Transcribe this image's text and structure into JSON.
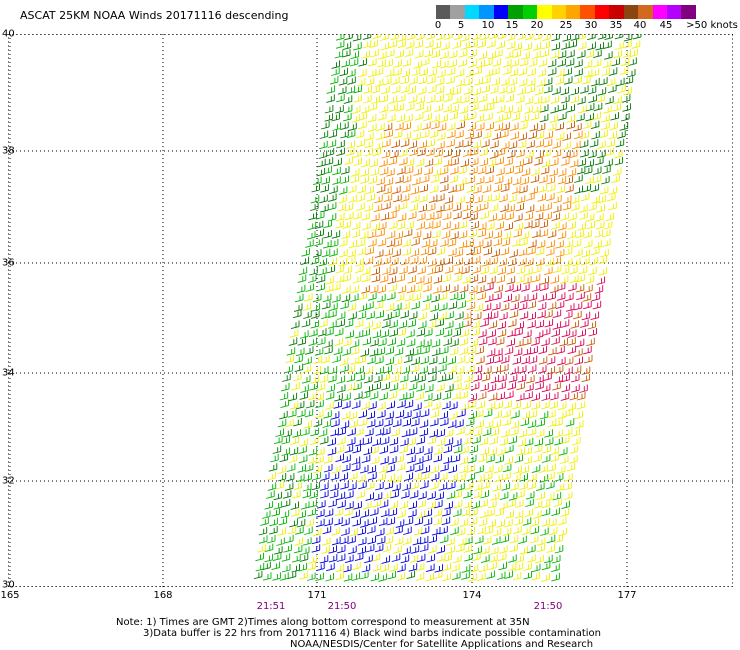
{
  "title": "ASCAT 25KM NOAA Winds 20171116 descending",
  "colorbar": {
    "colors": [
      "#5a5a5a",
      "#a0a0a0",
      "#00d8ff",
      "#0096ff",
      "#0000ff",
      "#00a000",
      "#00d000",
      "#ffff00",
      "#ffd200",
      "#ffa500",
      "#ff5000",
      "#ff0000",
      "#c80000",
      "#8b4513",
      "#d2691e",
      "#ff00ff",
      "#b400ff",
      "#800080"
    ],
    "labels": [
      "0",
      "5",
      "10",
      "15",
      "20",
      "25",
      "30",
      "35",
      "40",
      "45",
      ">50 knots"
    ]
  },
  "axes": {
    "lat_ticks": [
      "30",
      "32",
      "34",
      "36",
      "38",
      "40"
    ],
    "lon_ticks": [
      "165",
      "168",
      "171",
      "174",
      "177"
    ],
    "times": [
      "21:51",
      "21:50",
      "21:50"
    ]
  },
  "notes": [
    "Note: 1) Times are GMT 2)Times along bottom correspond to measurement at 35N",
    "3)Data buffer is 22 hrs from 20171116 4) Black wind barbs indicate possible contamination",
    "NOAA/NESDIS/Center for Satellite Applications and Research"
  ],
  "wind_colors": {
    "blue": "#0000e0",
    "green": "#00b400",
    "dark_green": "#007800",
    "yellow": "#f0f000",
    "orange": "#ff8c00",
    "brown": "#c85a00",
    "red": "#dc0050"
  }
}
